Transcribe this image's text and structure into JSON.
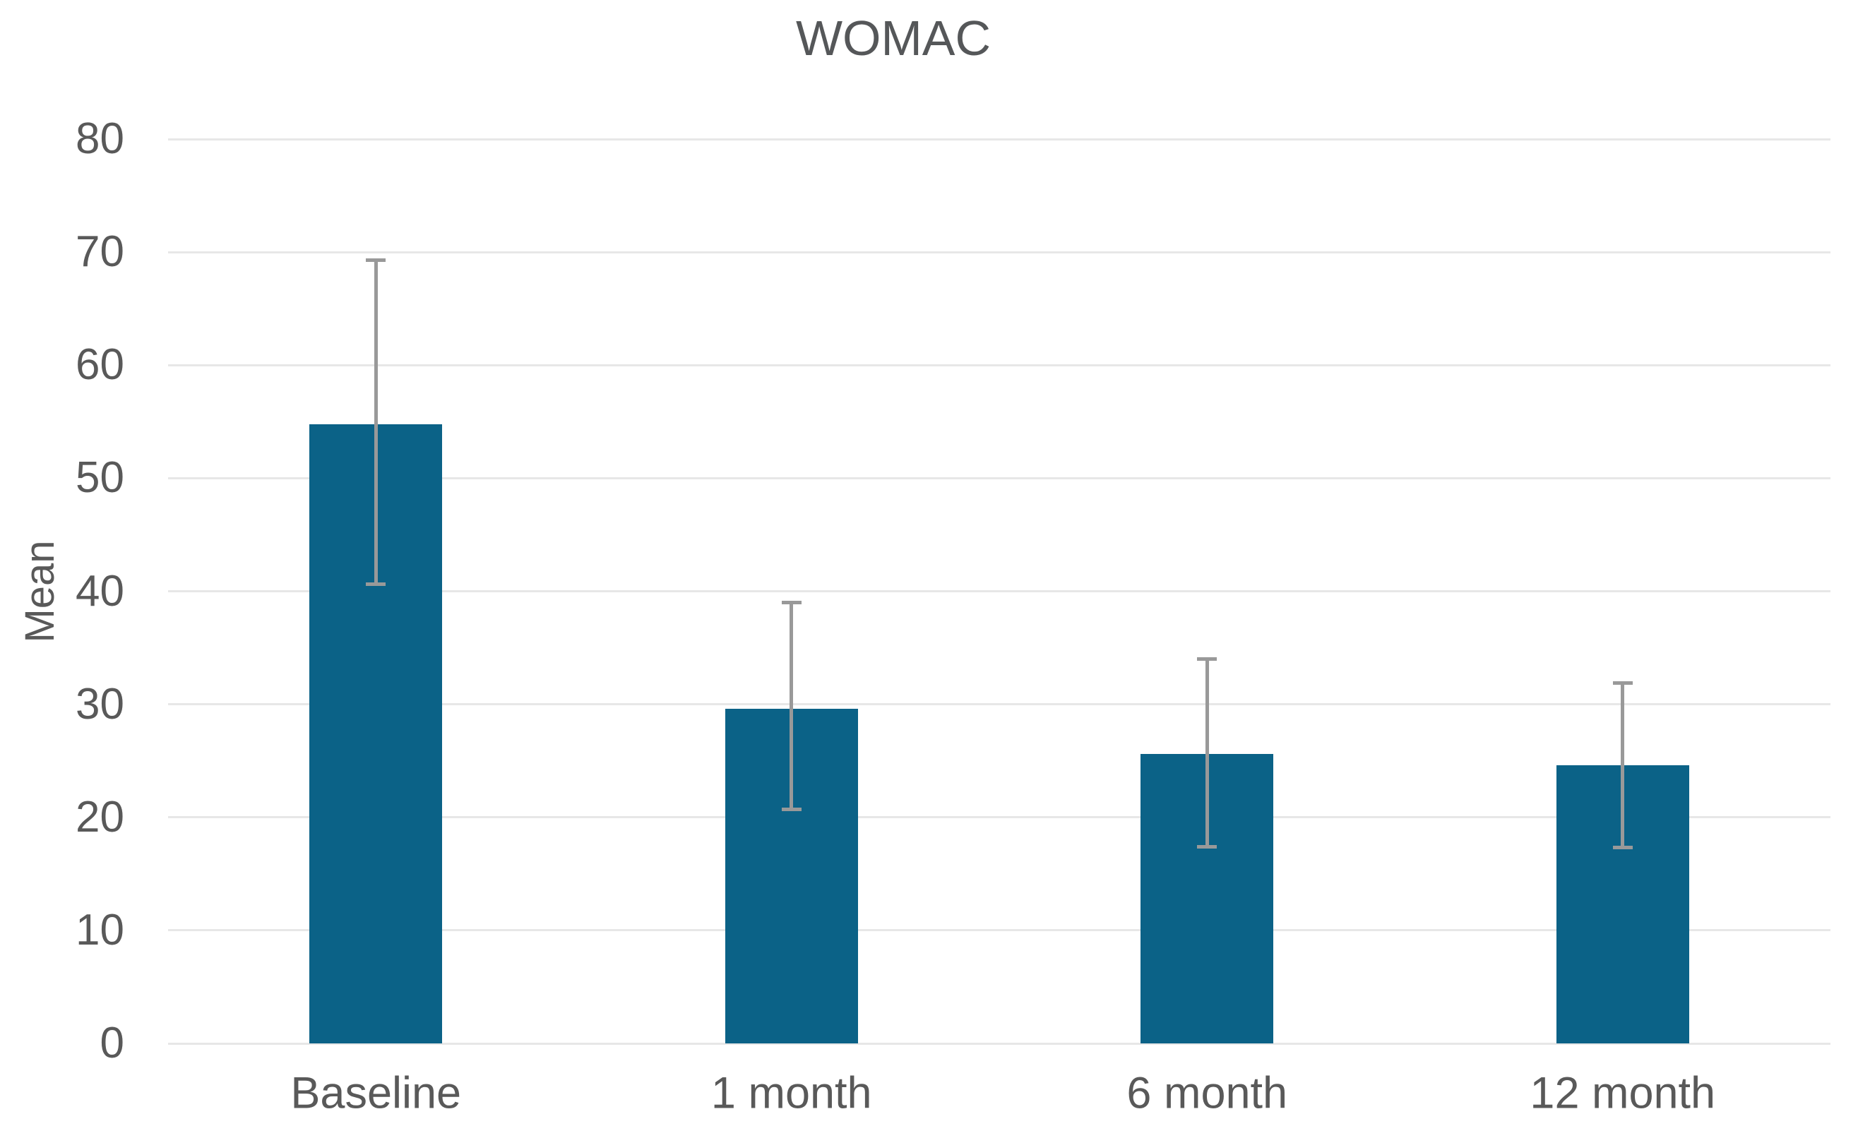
{
  "chart_data": {
    "type": "bar",
    "title": "WOMAC",
    "xlabel": "",
    "ylabel": "Mean",
    "categories": [
      "Baseline",
      "1 month",
      "6 month",
      "12 month"
    ],
    "series": [
      {
        "name": "Mean",
        "values": [
          54.8,
          29.6,
          25.6,
          24.6
        ]
      }
    ],
    "error_bars": {
      "lower": [
        40.6,
        20.7,
        17.4,
        17.3
      ],
      "upper": [
        69.3,
        39.0,
        34.0,
        31.9
      ]
    },
    "ylim": [
      0,
      80
    ],
    "yticks": [
      0,
      10,
      20,
      30,
      40,
      50,
      60,
      70,
      80
    ],
    "grid": "horizontal",
    "legend": "none"
  },
  "colors": {
    "bar": "#0B6287",
    "gridline": "#E7E7E7",
    "error_bar": "#999999",
    "axis_text": "#595959",
    "title_text": "#555759",
    "background": "#FFFFFF"
  }
}
